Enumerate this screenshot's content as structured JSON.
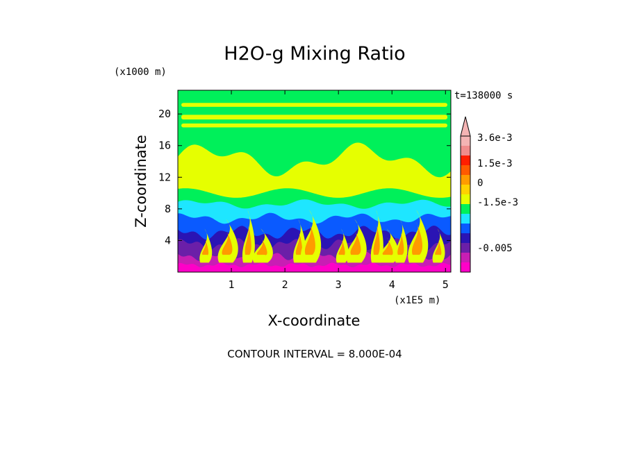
{
  "chart_data": {
    "type": "heatmap",
    "title": "H2O-g Mixing Ratio",
    "y_units_label": "(x1000 m)",
    "x_units_label": "(x1E5 m)",
    "xlabel": "X-coordinate",
    "ylabel": "Z-coordinate",
    "time_label": "t=138000 s",
    "footer": "CONTOUR INTERVAL = 8.000E-04",
    "x_range": [
      0,
      5.1
    ],
    "y_range": [
      0,
      23
    ],
    "x_ticks": [
      1,
      2,
      3,
      4,
      5
    ],
    "x_tick_labels": [
      "1",
      "2",
      "3",
      "4",
      "5"
    ],
    "y_ticks": [
      4,
      8,
      12,
      16,
      20
    ],
    "y_tick_labels": [
      "4",
      "8",
      "12",
      "16",
      "20"
    ],
    "colorbar": {
      "colors": [
        "#ff00c8",
        "#c81eb4",
        "#6b1fa8",
        "#2a14b4",
        "#0a5aff",
        "#1ee6ff",
        "#00f05a",
        "#e6ff00",
        "#ffd200",
        "#ff9b00",
        "#ff5a00",
        "#ff1e00",
        "#f08c8c",
        "#f4b4b4"
      ],
      "tick_labels": [
        "3.6e-3",
        "1.5e-3",
        "0",
        "-1.5e-3",
        "-0.005"
      ],
      "tick_values": [
        0.0036,
        0.0015,
        0.0,
        -0.0015,
        -0.005
      ]
    },
    "field_colors": {
      "green": "#00f05a",
      "yellow": "#e6ff00",
      "cyan": "#1ee6ff",
      "blue": "#0a5aff",
      "navy": "#2a14b4",
      "purple": "#6b1fa8",
      "magenta": "#c81eb4",
      "pink": "#ff00c8",
      "orange": "#ff9b00"
    }
  }
}
